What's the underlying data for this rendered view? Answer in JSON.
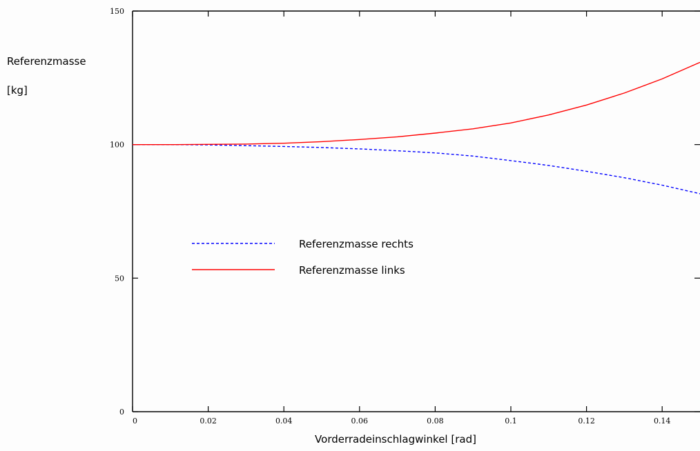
{
  "chart_data": {
    "type": "line",
    "title": "",
    "xlabel": "Vorderradeinschlagwinkel [rad]",
    "ylabel_lines": [
      "Referenzmasse",
      "[kg]"
    ],
    "xlim": [
      0,
      0.15
    ],
    "ylim": [
      0,
      150
    ],
    "x_ticks": [
      0,
      0.02,
      0.04,
      0.06,
      0.08,
      0.1,
      0.12,
      0.14
    ],
    "x_tick_labels": [
      "0",
      "0.02",
      "0.04",
      "0.06",
      "0.08",
      "0.1",
      "0.12",
      "0.14"
    ],
    "y_ticks": [
      0,
      50,
      100,
      150
    ],
    "y_tick_labels": [
      "0",
      "50",
      "100",
      "150"
    ],
    "grid": false,
    "legend_position": "center-left",
    "series": [
      {
        "name": "Referenzmasse rechts",
        "color": "#0000ff",
        "dash": "dashed",
        "x": [
          0,
          0.01,
          0.02,
          0.03,
          0.04,
          0.05,
          0.06,
          0.07,
          0.08,
          0.09,
          0.1,
          0.11,
          0.12,
          0.13,
          0.14,
          0.15
        ],
        "y": [
          100,
          100,
          99.9,
          99.6,
          99.3,
          98.9,
          98.4,
          97.7,
          96.9,
          95.7,
          94.0,
          92.2,
          90.0,
          87.6,
          84.8,
          81.6
        ]
      },
      {
        "name": "Referenzmasse links",
        "color": "#ff0000",
        "dash": "solid",
        "x": [
          0,
          0.01,
          0.02,
          0.03,
          0.04,
          0.05,
          0.06,
          0.07,
          0.08,
          0.09,
          0.1,
          0.11,
          0.12,
          0.13,
          0.14,
          0.15
        ],
        "y": [
          100,
          100,
          100.1,
          100.2,
          100.5,
          101.1,
          101.9,
          102.9,
          104.3,
          105.9,
          108.1,
          111.1,
          114.8,
          119.3,
          124.6,
          130.8
        ]
      }
    ]
  }
}
